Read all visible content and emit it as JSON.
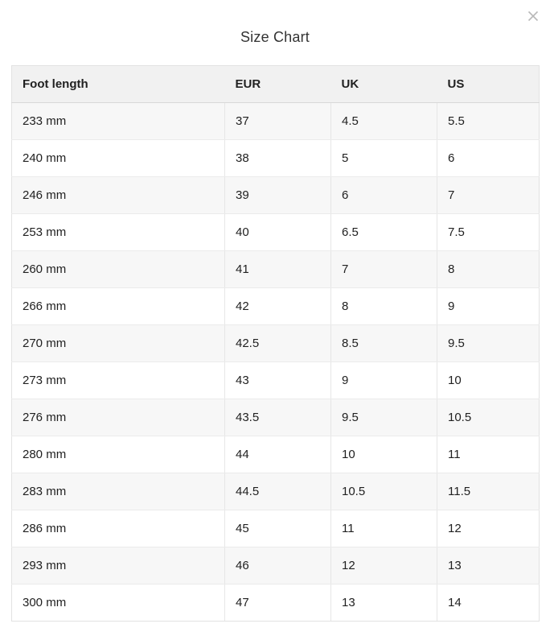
{
  "modal": {
    "title": "Size Chart"
  },
  "table": {
    "columns": [
      "Foot length",
      "EUR",
      "UK",
      "US"
    ],
    "rows": [
      [
        "233 mm",
        "37",
        "4.5",
        "5.5"
      ],
      [
        "240 mm",
        "38",
        "5",
        "6"
      ],
      [
        "246 mm",
        "39",
        "6",
        "7"
      ],
      [
        "253 mm",
        "40",
        "6.5",
        "7.5"
      ],
      [
        "260 mm",
        "41",
        "7",
        "8"
      ],
      [
        "266 mm",
        "42",
        "8",
        "9"
      ],
      [
        "270 mm",
        "42.5",
        "8.5",
        "9.5"
      ],
      [
        "273 mm",
        "43",
        "9",
        "10"
      ],
      [
        "276 mm",
        "43.5",
        "9.5",
        "10.5"
      ],
      [
        "280 mm",
        "44",
        "10",
        "11"
      ],
      [
        "283 mm",
        "44.5",
        "10.5",
        "11.5"
      ],
      [
        "286 mm",
        "45",
        "11",
        "12"
      ],
      [
        "293 mm",
        "46",
        "12",
        "13"
      ],
      [
        "300 mm",
        "47",
        "13",
        "14"
      ]
    ]
  },
  "icons": {
    "close": "close-icon"
  },
  "colors": {
    "header_bg": "#f1f1f1",
    "stripe_bg": "#f7f7f7",
    "row_bg": "#ffffff",
    "outer_border": "#e2e2e2",
    "header_divider": "#d8d8d8",
    "row_divider": "#ebebeb",
    "text": "#212121",
    "title_text": "#333333",
    "close_icon": "#b9b9b9"
  }
}
